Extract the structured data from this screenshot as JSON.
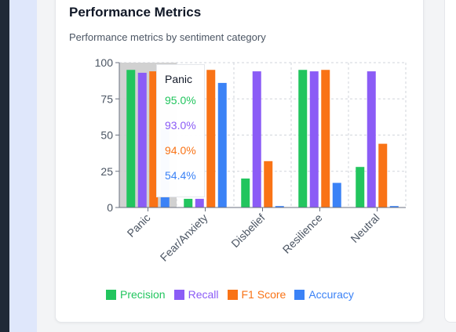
{
  "card": {
    "title": "Performance Metrics",
    "subtitle": "Performance metrics by sentiment category"
  },
  "chart_data": {
    "type": "bar",
    "categories": [
      "Panic",
      "Fear/Anxiety",
      "Disbelief",
      "Resilience",
      "Neutral"
    ],
    "series": [
      {
        "name": "Precision",
        "color": "#22c55e",
        "values": [
          95.0,
          6,
          20,
          95,
          28
        ]
      },
      {
        "name": "Recall",
        "color": "#8b5cf6",
        "values": [
          93.0,
          6,
          94,
          94,
          94
        ]
      },
      {
        "name": "F1 Score",
        "color": "#f97316",
        "values": [
          94.0,
          95,
          32,
          95,
          44
        ]
      },
      {
        "name": "Accuracy",
        "color": "#3b82f6",
        "values": [
          54.4,
          86,
          1,
          17,
          1
        ]
      }
    ],
    "yticks": [
      0,
      25,
      50,
      75,
      100
    ],
    "ylim": [
      0,
      100
    ],
    "grid": true,
    "legend_position": "bottom",
    "hover_category": "Panic"
  },
  "tooltip": {
    "title": "Panic",
    "rows": [
      {
        "label": "95.0%",
        "color": "#22c55e"
      },
      {
        "label": "93.0%",
        "color": "#8b5cf6"
      },
      {
        "label": "94.0%",
        "color": "#f97316"
      },
      {
        "label": "54.4%",
        "color": "#3b82f6"
      }
    ]
  }
}
